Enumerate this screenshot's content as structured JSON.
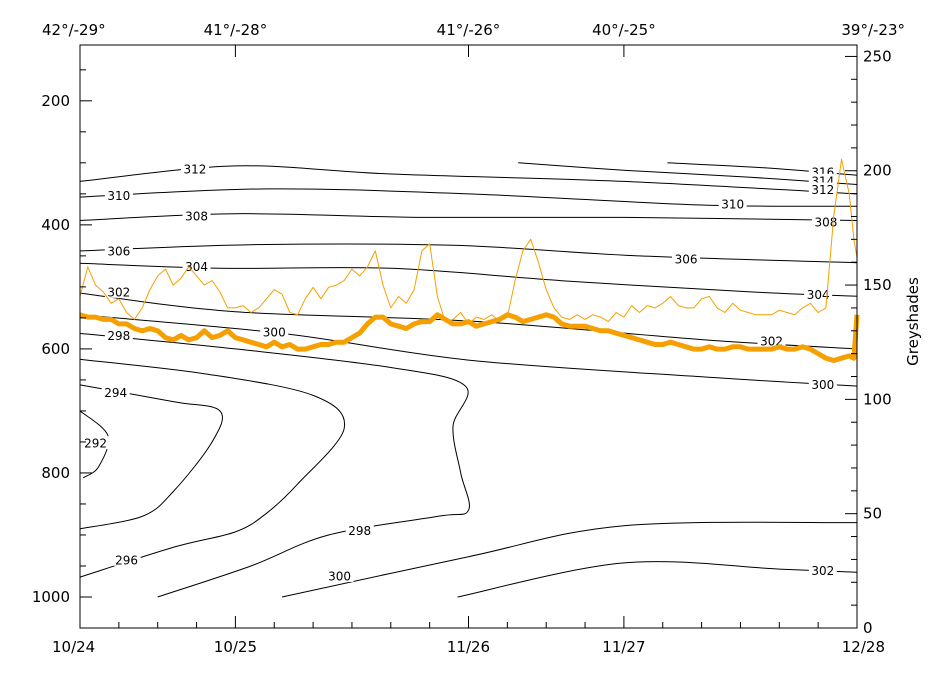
{
  "chart_data": {
    "type": "line",
    "x_axis": {
      "labels": [
        "10/24",
        "10/25",
        "11/26",
        "11/27",
        "12/28"
      ],
      "positions": [
        0,
        1,
        2.5,
        3.5,
        5
      ]
    },
    "top_axis": {
      "labels": [
        "42°/-29°",
        "41°/-28°",
        "41°/-26°",
        "40°/-25°",
        "39°/-23°"
      ],
      "positions": [
        0,
        1,
        2.5,
        3.5,
        5
      ]
    },
    "left_axis": {
      "ylim": [
        1050,
        110
      ],
      "tick_labels": [
        "200",
        "400",
        "600",
        "800",
        "1000"
      ],
      "tick_values": [
        200,
        400,
        600,
        800,
        1000
      ],
      "minor_ticks": [
        150,
        250,
        300,
        350,
        450,
        500,
        550,
        650,
        700,
        750,
        850,
        900,
        950,
        1050
      ]
    },
    "right_axis": {
      "label": "Greyshades",
      "ylim": [
        0,
        255
      ],
      "tick_labels": [
        "0",
        "50",
        "100",
        "150",
        "200",
        "250"
      ],
      "tick_values": [
        0,
        50,
        100,
        150,
        200,
        250
      ]
    },
    "contours": [
      {
        "level": "316",
        "points": [
          [
            3.78,
            300
          ],
          [
            4.4,
            308
          ],
          [
            5,
            320
          ]
        ],
        "labels": [
          [
            4.78,
            315
          ]
        ]
      },
      {
        "level": "314",
        "points": [
          [
            2.82,
            300
          ],
          [
            3.5,
            312
          ],
          [
            4.3,
            323
          ],
          [
            5,
            335
          ]
        ],
        "labels": [
          [
            4.78,
            329
          ]
        ]
      },
      {
        "level": "312",
        "points": [
          [
            0,
            330
          ],
          [
            1,
            305
          ],
          [
            2.0,
            318
          ],
          [
            3.5,
            330
          ],
          [
            5,
            350
          ]
        ],
        "labels": [
          [
            0.74,
            310
          ],
          [
            4.78,
            343
          ]
        ]
      },
      {
        "level": "310",
        "points": [
          [
            0,
            355
          ],
          [
            1.2,
            342
          ],
          [
            2.5,
            350
          ],
          [
            4,
            368
          ],
          [
            5,
            370
          ]
        ],
        "labels": [
          [
            0.25,
            353
          ],
          [
            4.2,
            366
          ]
        ]
      },
      {
        "level": "308",
        "points": [
          [
            0,
            393
          ],
          [
            1.0,
            382
          ],
          [
            2.2,
            388
          ],
          [
            3.5,
            388
          ],
          [
            5,
            393
          ]
        ],
        "labels": [
          [
            0.75,
            386
          ],
          [
            4.8,
            395
          ]
        ]
      },
      {
        "level": "306",
        "points": [
          [
            0,
            442
          ],
          [
            1.1,
            432
          ],
          [
            2.4,
            433
          ],
          [
            3.6,
            450
          ],
          [
            5,
            461
          ]
        ],
        "labels": [
          [
            0.25,
            442
          ],
          [
            3.9,
            455
          ]
        ]
      },
      {
        "level": "304",
        "points": [
          [
            0,
            462
          ],
          [
            0.9,
            470
          ],
          [
            2.0,
            470
          ],
          [
            3.1,
            490
          ],
          [
            4.3,
            508
          ],
          [
            5,
            515
          ]
        ],
        "labels": [
          [
            0.75,
            467
          ],
          [
            4.75,
            512
          ]
        ]
      },
      {
        "level": "302",
        "points": [
          [
            0,
            510
          ],
          [
            1.0,
            540
          ],
          [
            2.5,
            555
          ],
          [
            4,
            585
          ],
          [
            5,
            600
          ]
        ],
        "labels": [
          [
            0.25,
            508
          ],
          [
            4.45,
            587
          ]
        ]
      },
      {
        "level": "300",
        "points": [
          [
            0,
            545
          ],
          [
            1.3,
            575
          ],
          [
            2.5,
            618
          ],
          [
            4,
            645
          ],
          [
            5,
            660
          ]
        ],
        "labels": [
          [
            1.25,
            573
          ],
          [
            4.78,
            657
          ]
        ]
      },
      {
        "level": "298",
        "points": [
          [
            0,
            575
          ],
          [
            1.0,
            600
          ],
          [
            2.0,
            630
          ],
          [
            2.48,
            660
          ],
          [
            2.4,
            725
          ],
          [
            2.45,
            800
          ],
          [
            2.5,
            860
          ],
          [
            2.3,
            870
          ],
          [
            1.6,
            900
          ],
          [
            1.1,
            950
          ],
          [
            0.5,
            1000
          ]
        ],
        "labels": [
          [
            0.25,
            578
          ],
          [
            1.8,
            893
          ]
        ]
      },
      {
        "level": "296",
        "points": [
          [
            0,
            617
          ],
          [
            0.8,
            640
          ],
          [
            1.5,
            675
          ],
          [
            1.7,
            728
          ],
          [
            1.4,
            818
          ],
          [
            1.2,
            865
          ],
          [
            1.0,
            895
          ],
          [
            0.6,
            920
          ],
          [
            0,
            968
          ]
        ],
        "labels": [
          [
            0.3,
            940
          ]
        ]
      },
      {
        "level": "294",
        "points": [
          [
            0,
            658
          ],
          [
            0.6,
            685
          ],
          [
            0.9,
            700
          ],
          [
            0.85,
            750
          ],
          [
            0.6,
            830
          ],
          [
            0.4,
            870
          ],
          [
            0,
            890
          ]
        ],
        "labels": [
          [
            0.23,
            670
          ]
        ]
      },
      {
        "level": "292",
        "points": [
          [
            0.02,
            808
          ],
          [
            0.12,
            790
          ],
          [
            0.18,
            740
          ],
          [
            0.0,
            700
          ]
        ],
        "labels": [
          [
            0.1,
            752
          ]
        ]
      },
      {
        "level": "300",
        "points": [
          [
            1.3,
            1000
          ],
          [
            2.5,
            935
          ],
          [
            3.5,
            885
          ],
          [
            5,
            880
          ]
        ],
        "labels": [
          [
            1.67,
            966
          ]
        ]
      },
      {
        "level": "302",
        "points": [
          [
            2.43,
            1000
          ],
          [
            3.5,
            945
          ],
          [
            4.5,
            955
          ],
          [
            5,
            960
          ]
        ],
        "labels": [
          [
            4.78,
            957
          ]
        ]
      }
    ],
    "series": [
      {
        "color": "#f5a000",
        "width": 1,
        "right_axis": true,
        "x": [
          0,
          0.05,
          0.1,
          0.15,
          0.2,
          0.25,
          0.3,
          0.35,
          0.4,
          0.45,
          0.5,
          0.55,
          0.6,
          0.65,
          0.7,
          0.75,
          0.8,
          0.85,
          0.9,
          0.95,
          1.0,
          1.05,
          1.1,
          1.15,
          1.2,
          1.25,
          1.3,
          1.35,
          1.4,
          1.45,
          1.5,
          1.55,
          1.6,
          1.65,
          1.7,
          1.75,
          1.8,
          1.85,
          1.9,
          1.95,
          2.0,
          2.05,
          2.1,
          2.15,
          2.2,
          2.25,
          2.3,
          2.35,
          2.4,
          2.45,
          2.5,
          2.55,
          2.6,
          2.65,
          2.7,
          2.75,
          2.8,
          2.85,
          2.9,
          2.95,
          3.0,
          3.05,
          3.1,
          3.15,
          3.2,
          3.25,
          3.3,
          3.35,
          3.4,
          3.45,
          3.5,
          3.55,
          3.6,
          3.65,
          3.7,
          3.75,
          3.8,
          3.85,
          3.9,
          3.95,
          4.0,
          4.05,
          4.1,
          4.15,
          4.2,
          4.25,
          4.3,
          4.35,
          4.4,
          4.45,
          4.5,
          4.55,
          4.6,
          4.65,
          4.7,
          4.75,
          4.8,
          4.85,
          4.9,
          4.95,
          4.98,
          5.0
        ],
        "y": [
          145,
          158,
          150,
          147,
          142,
          144,
          138,
          135,
          140,
          148,
          154,
          157,
          150,
          153,
          158,
          154,
          150,
          152,
          147,
          140,
          140,
          141,
          138,
          140,
          144,
          148,
          146,
          138,
          137,
          144,
          149,
          144,
          149,
          150,
          152,
          157,
          154,
          158,
          165,
          150,
          140,
          145,
          142,
          148,
          165,
          168,
          145,
          134,
          135,
          138,
          133,
          136,
          135,
          137,
          134,
          136,
          152,
          165,
          170,
          160,
          148,
          140,
          136,
          135,
          137,
          135,
          137,
          136,
          134,
          138,
          136,
          141,
          138,
          141,
          140,
          142,
          145,
          141,
          140,
          140,
          144,
          145,
          140,
          138,
          142,
          139,
          138,
          137,
          137,
          137,
          139,
          138,
          137,
          140,
          142,
          138,
          140,
          180,
          205,
          190,
          170,
          162
        ]
      },
      {
        "color": "#f5a000",
        "width": 5,
        "right_axis": true,
        "x": [
          0,
          0.05,
          0.1,
          0.15,
          0.2,
          0.25,
          0.3,
          0.35,
          0.4,
          0.45,
          0.5,
          0.55,
          0.6,
          0.65,
          0.7,
          0.75,
          0.8,
          0.85,
          0.9,
          0.95,
          1.0,
          1.05,
          1.1,
          1.15,
          1.2,
          1.25,
          1.3,
          1.35,
          1.4,
          1.45,
          1.5,
          1.55,
          1.6,
          1.65,
          1.7,
          1.75,
          1.8,
          1.85,
          1.9,
          1.95,
          2.0,
          2.05,
          2.1,
          2.15,
          2.2,
          2.25,
          2.3,
          2.35,
          2.4,
          2.45,
          2.5,
          2.55,
          2.6,
          2.65,
          2.7,
          2.75,
          2.8,
          2.85,
          2.9,
          2.95,
          3.0,
          3.05,
          3.1,
          3.15,
          3.2,
          3.25,
          3.3,
          3.35,
          3.4,
          3.45,
          3.5,
          3.55,
          3.6,
          3.65,
          3.7,
          3.75,
          3.8,
          3.85,
          3.9,
          3.95,
          4.0,
          4.05,
          4.1,
          4.15,
          4.2,
          4.25,
          4.3,
          4.35,
          4.4,
          4.45,
          4.5,
          4.55,
          4.6,
          4.65,
          4.7,
          4.75,
          4.8,
          4.85,
          4.9,
          4.95,
          4.98,
          5.0
        ],
        "y": [
          137,
          136,
          136,
          135,
          135,
          133,
          133,
          131,
          130,
          131,
          130,
          127,
          126,
          128,
          126,
          127,
          130,
          127,
          128,
          130,
          127,
          126,
          125,
          124,
          123,
          125,
          123,
          124,
          122,
          122,
          123,
          124,
          124,
          125,
          125,
          127,
          129,
          133,
          136,
          136,
          133,
          132,
          131,
          133,
          134,
          134,
          137,
          135,
          133,
          133,
          134,
          132,
          133,
          134,
          135,
          137,
          136,
          134,
          135,
          136,
          137,
          136,
          133,
          132,
          132,
          132,
          131,
          130,
          130,
          129,
          128,
          127,
          126,
          125,
          124,
          124,
          125,
          124,
          123,
          122,
          122,
          123,
          122,
          122,
          123,
          123,
          122,
          122,
          122,
          122,
          123,
          122,
          122,
          123,
          122,
          120,
          118,
          117,
          118,
          119,
          118,
          137
        ]
      }
    ]
  }
}
